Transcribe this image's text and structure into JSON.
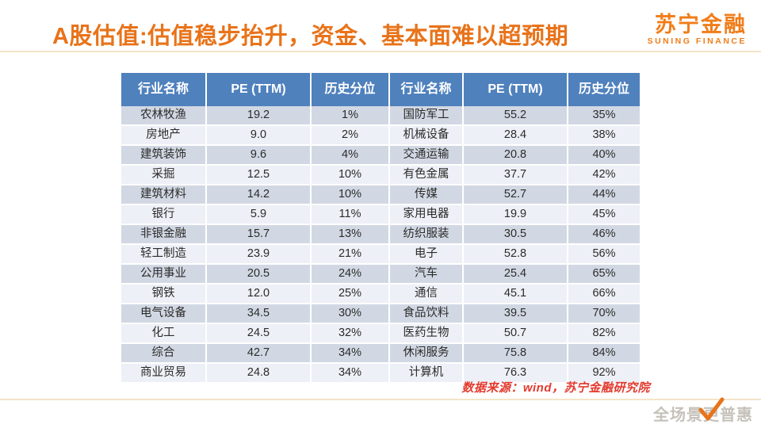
{
  "slide": {
    "title": "A股估值:估值稳步抬升，资金、基本面难以超预期",
    "logo": {
      "name": "苏宁金融",
      "subtitle": "SUNING FINANCE"
    },
    "source_note": "数据来源：wind，苏宁金融研究院",
    "watermark": "全场景更普惠",
    "icons": {
      "watermark_check": "checkmark-icon"
    },
    "colors": {
      "title_orange": "#E8731A",
      "logo_orange": "#F07D1A",
      "header_blue": "#4F81BD",
      "row_dark": "#D2D8E3",
      "row_light": "#EDF0F6",
      "divider_tan": "#F3E4C8",
      "source_red": "#E23A2E",
      "watermark_gray": "#C6C2BA"
    }
  },
  "table": {
    "headers": [
      "行业名称",
      "PE (TTM)",
      "历史分位",
      "行业名称",
      "PE (TTM)",
      "历史分位"
    ],
    "rows": [
      [
        "农林牧渔",
        "19.2",
        "1%",
        "国防军工",
        "55.2",
        "35%"
      ],
      [
        "房地产",
        "9.0",
        "2%",
        "机械设备",
        "28.4",
        "38%"
      ],
      [
        "建筑装饰",
        "9.6",
        "4%",
        "交通运输",
        "20.8",
        "40%"
      ],
      [
        "采掘",
        "12.5",
        "10%",
        "有色金属",
        "37.7",
        "42%"
      ],
      [
        "建筑材料",
        "14.2",
        "10%",
        "传媒",
        "52.7",
        "44%"
      ],
      [
        "银行",
        "5.9",
        "11%",
        "家用电器",
        "19.9",
        "45%"
      ],
      [
        "非银金融",
        "15.7",
        "13%",
        "纺织服装",
        "30.5",
        "46%"
      ],
      [
        "轻工制造",
        "23.9",
        "21%",
        "电子",
        "52.8",
        "56%"
      ],
      [
        "公用事业",
        "20.5",
        "24%",
        "汽车",
        "25.4",
        "65%"
      ],
      [
        "钢铁",
        "12.0",
        "25%",
        "通信",
        "45.1",
        "66%"
      ],
      [
        "电气设备",
        "34.5",
        "30%",
        "食品饮料",
        "39.5",
        "70%"
      ],
      [
        "化工",
        "24.5",
        "32%",
        "医药生物",
        "50.7",
        "82%"
      ],
      [
        "综合",
        "42.7",
        "34%",
        "休闲服务",
        "75.8",
        "84%"
      ],
      [
        "商业贸易",
        "24.8",
        "34%",
        "计算机",
        "76.3",
        "92%"
      ]
    ]
  }
}
